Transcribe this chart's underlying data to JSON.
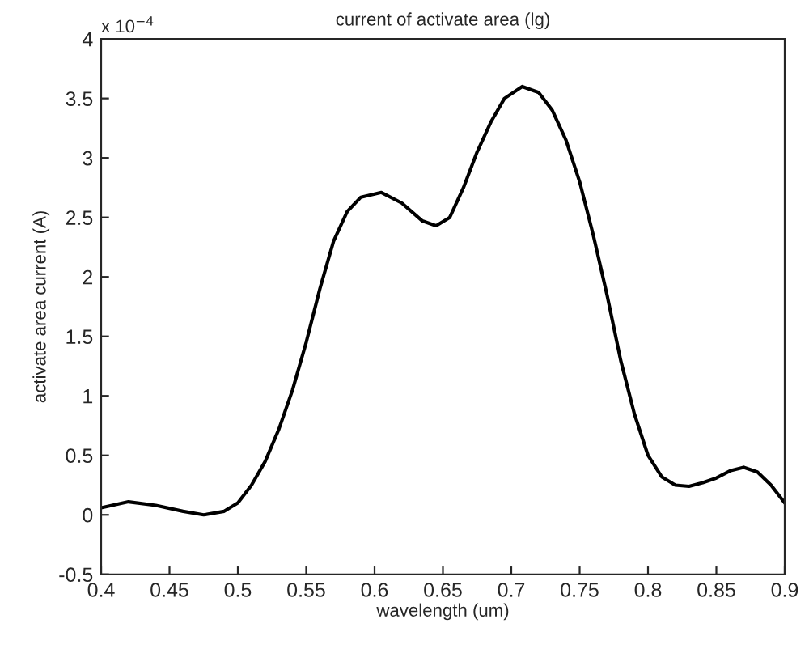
{
  "chart_data": {
    "type": "line",
    "title": "current of activate area (lg)",
    "xlabel": "wavelength (um)",
    "ylabel": "activate area current (A)",
    "annotations": [
      "x 10$^{−4}$"
    ],
    "x": [
      0.4,
      0.42,
      0.44,
      0.46,
      0.475,
      0.49,
      0.5,
      0.51,
      0.52,
      0.53,
      0.54,
      0.55,
      0.56,
      0.57,
      0.58,
      0.59,
      0.605,
      0.62,
      0.635,
      0.645,
      0.655,
      0.665,
      0.675,
      0.685,
      0.695,
      0.708,
      0.72,
      0.73,
      0.74,
      0.75,
      0.76,
      0.77,
      0.78,
      0.79,
      0.8,
      0.81,
      0.82,
      0.83,
      0.84,
      0.85,
      0.86,
      0.87,
      0.88,
      0.89,
      0.9
    ],
    "series": [
      {
        "color": "#000000",
        "values": [
          0.06,
          0.11,
          0.08,
          0.03,
          0.0,
          0.03,
          0.1,
          0.25,
          0.45,
          0.72,
          1.05,
          1.45,
          1.9,
          2.3,
          2.55,
          2.67,
          2.71,
          2.62,
          2.47,
          2.43,
          2.5,
          2.75,
          3.05,
          3.3,
          3.5,
          3.6,
          3.55,
          3.4,
          3.15,
          2.8,
          2.35,
          1.85,
          1.3,
          0.85,
          0.5,
          0.32,
          0.25,
          0.24,
          0.27,
          0.31,
          0.37,
          0.4,
          0.36,
          0.25,
          0.1
        ]
      }
    ],
    "xlim": [
      0.4,
      0.9
    ],
    "xticks": [
      0.4,
      0.45,
      0.5,
      0.55,
      0.6,
      0.65,
      0.7,
      0.75,
      0.8,
      0.85,
      0.9
    ],
    "ylim": [
      -0.5,
      4
    ],
    "yticks": [
      -0.5,
      0,
      0.5,
      1,
      1.5,
      2,
      2.5,
      3,
      3.5,
      4
    ],
    "grid": false
  }
}
